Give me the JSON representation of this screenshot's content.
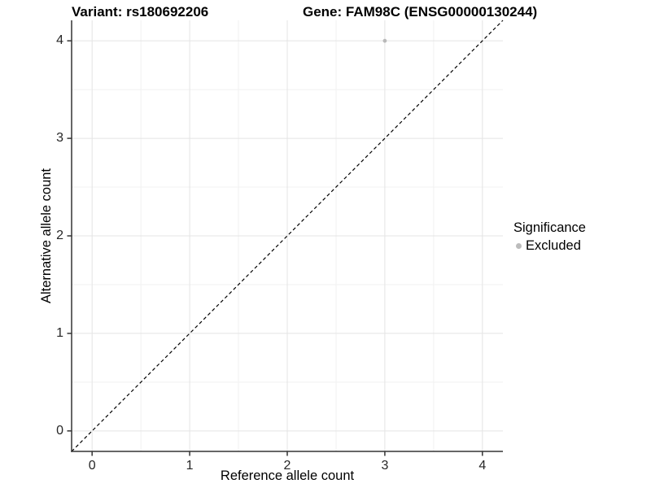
{
  "titles": {
    "variant": "Variant: rs180692206",
    "gene": "Gene: FAM98C (ENSG00000130244)"
  },
  "axes": {
    "x": {
      "label": "Reference allele count",
      "ticks": [
        "0",
        "1",
        "2",
        "3",
        "4"
      ]
    },
    "y": {
      "label": "Alternative allele count",
      "ticks": [
        "0",
        "1",
        "2",
        "3",
        "4"
      ]
    }
  },
  "legend": {
    "title": "Significance",
    "items": [
      {
        "label": "Excluded",
        "color": "#bcbcbc"
      }
    ]
  },
  "colors": {
    "background": "#ffffff",
    "grid_major": "#e4e4e4",
    "grid_minor": "#f1f1f1",
    "axis_line": "#333333",
    "tick_label": "#262626",
    "point": "#b9b9b9",
    "identity_line": "#000000"
  },
  "chart_data": {
    "type": "scatter",
    "title": "Variant: rs180692206 / Gene: FAM98C (ENSG00000130244)",
    "xlabel": "Reference allele count",
    "ylabel": "Alternative allele count",
    "xlim": [
      -0.21,
      4.21
    ],
    "ylim": [
      -0.21,
      4.21
    ],
    "x_major_ticks": [
      0,
      1,
      2,
      3,
      4
    ],
    "y_major_ticks": [
      0,
      1,
      2,
      3,
      4
    ],
    "x_minor_ticks": [
      0.5,
      1.5,
      2.5,
      3.5
    ],
    "y_minor_ticks": [
      0.5,
      1.5,
      2.5,
      3.5
    ],
    "grid": "major and minor gridlines, light gray on white; axis lines on left and bottom only",
    "legend_position": "right",
    "series": [
      {
        "name": "Excluded",
        "color": "#b9b9b9",
        "point_radius": 2.4,
        "points": [
          {
            "x": 3,
            "y": 4
          }
        ]
      }
    ],
    "annotations": [
      {
        "type": "abline",
        "slope": 1,
        "intercept": 0,
        "style": "dashed",
        "color": "#000000",
        "note": "identity line y = x spanning full panel"
      }
    ]
  }
}
